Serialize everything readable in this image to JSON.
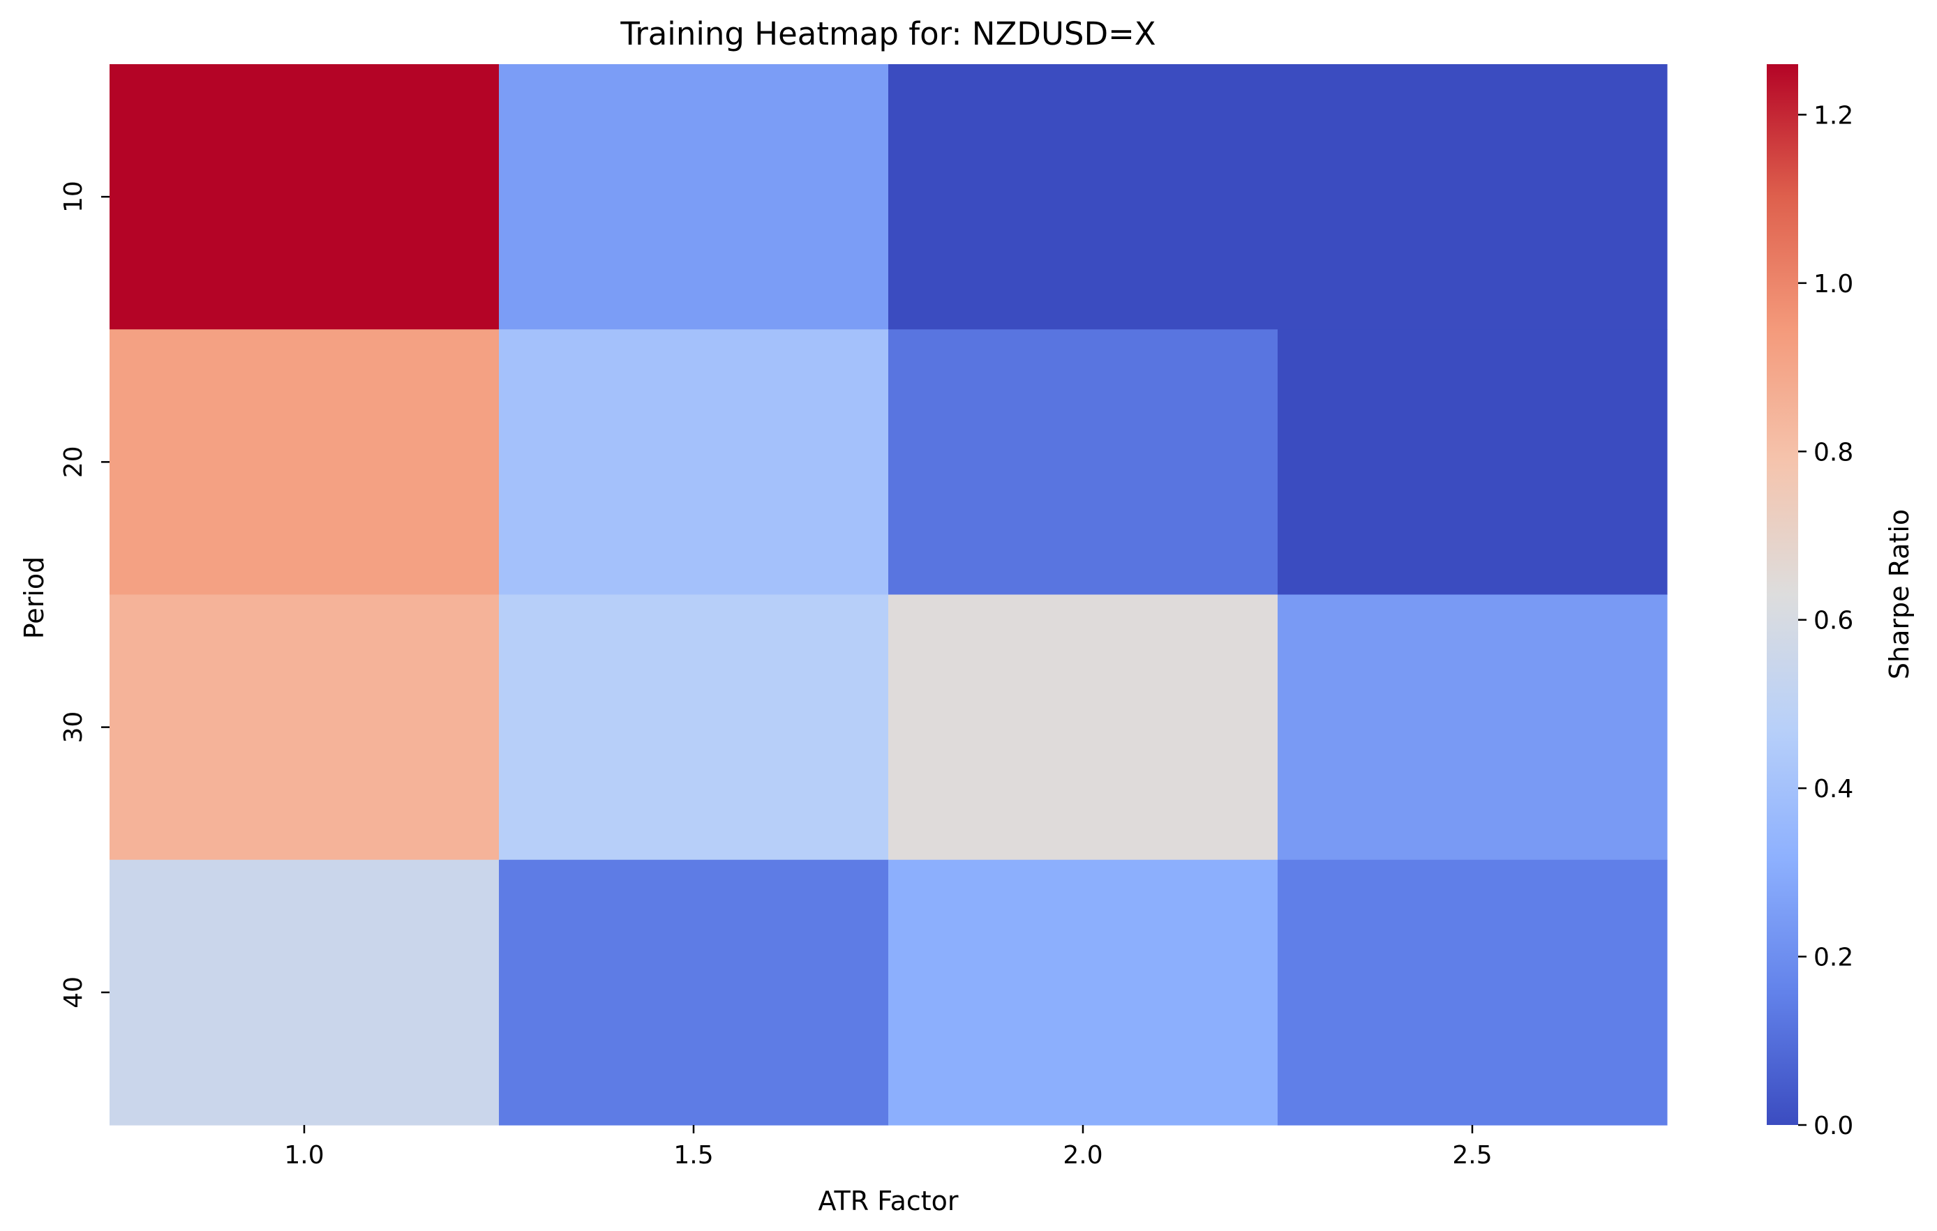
{
  "chart_data": {
    "type": "heatmap",
    "title": "Training Heatmap for: NZDUSD=X",
    "xlabel": "ATR Factor",
    "ylabel": "Period",
    "x_categories": [
      "1.0",
      "1.5",
      "2.0",
      "2.5"
    ],
    "y_categories": [
      "10",
      "20",
      "30",
      "40"
    ],
    "values": [
      [
        1.26,
        0.25,
        0.0,
        0.0
      ],
      [
        0.92,
        0.4,
        0.12,
        0.0
      ],
      [
        0.85,
        0.47,
        0.64,
        0.24
      ],
      [
        0.55,
        0.14,
        0.31,
        0.15
      ]
    ],
    "colormap": "coolwarm",
    "colorbar": {
      "label": "Sharpe Ratio",
      "min": 0.0,
      "max": 1.26,
      "ticks": [
        "0.0",
        "0.2",
        "0.4",
        "0.6",
        "0.8",
        "1.0",
        "1.2"
      ]
    }
  }
}
